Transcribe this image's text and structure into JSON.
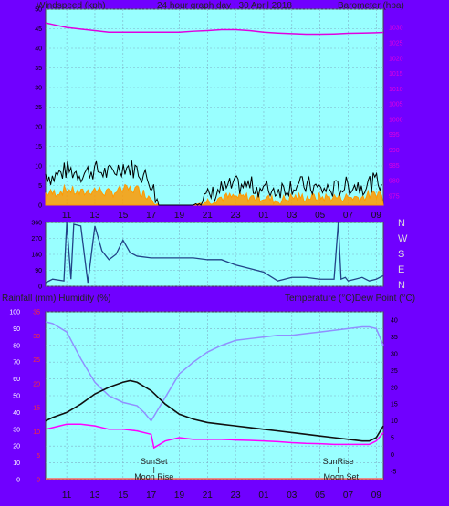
{
  "header": {
    "left_label": "Windspeed (kph)",
    "title": "24 hour graph day : 30 April 2018",
    "right_label": "Barometer (hpa)"
  },
  "direction_labels": [
    "N",
    "W",
    "S",
    "E",
    "N"
  ],
  "bottom_header": {
    "left_label": "Rainfall (mm)  Humidity (%)",
    "right_label": "Temperature (°C)Dew Point (°C)"
  },
  "annotations": [
    {
      "text": "SunSet",
      "hour": 17.2,
      "row": 1
    },
    {
      "text": "Moon Rise",
      "hour": 17.2,
      "row": 2
    },
    {
      "text": "SunRise",
      "hour": 30.3,
      "row": 1
    },
    {
      "text": "Moon Set",
      "hour": 30.5,
      "row": 2
    }
  ],
  "colors": {
    "background": "#7000ff",
    "plot": "#99ffff",
    "barometer": "#e000e0",
    "gust": "#000000",
    "wind_avg": "#ff9900",
    "direction": "#224488",
    "temperature": "#101010",
    "humidity": "#9090ff",
    "dewpoint": "#ff00ff",
    "rain": "#ff6666"
  },
  "chart_data": [
    {
      "type": "line",
      "name": "wind-barometer",
      "x_ticks": [
        "11",
        "13",
        "15",
        "17",
        "19",
        "21",
        "23",
        "01",
        "03",
        "05",
        "07",
        "09"
      ],
      "x_range_hours": [
        9.5,
        33.5
      ],
      "y_left_range": [
        0,
        50
      ],
      "y_left_ticks": [
        "0",
        "5",
        "10",
        "15",
        "20",
        "25",
        "30",
        "35",
        "40",
        "45",
        "50"
      ],
      "y_right_range": [
        972,
        1036
      ],
      "y_right_ticks": [
        "975",
        "980",
        "985",
        "990",
        "995",
        "1000",
        "1005",
        "1010",
        "1015",
        "1020",
        "1025",
        "1030"
      ],
      "series": [
        {
          "name": "",
          "axis": "right",
          "x": [
            9.5,
            10,
            11,
            12,
            13,
            14,
            15,
            16,
            17,
            18,
            19,
            20,
            21,
            22,
            23,
            24,
            25,
            26,
            27,
            28,
            29,
            30,
            31,
            32,
            33,
            33.5
          ],
          "values": [
            1031.5,
            1031,
            1030,
            1029.5,
            1029,
            1028.5,
            1028.5,
            1028.5,
            1028.5,
            1028.5,
            1028.5,
            1028.8,
            1029,
            1029.3,
            1029.3,
            1029,
            1028.5,
            1028.2,
            1028,
            1027.8,
            1027.8,
            1027.9,
            1028.1,
            1028.2,
            1028.3,
            1028.4
          ]
        },
        {
          "name": "",
          "axis": "left",
          "x": [
            9.5,
            10,
            11,
            12,
            13,
            14,
            15,
            16,
            17,
            17.5,
            18,
            19,
            20,
            21,
            22,
            23,
            24,
            25,
            26,
            27,
            28,
            29,
            30,
            31,
            32,
            33,
            33.5
          ],
          "values": [
            8,
            7,
            9,
            8,
            9,
            8,
            10,
            9,
            6,
            0,
            0,
            0,
            0,
            2,
            4,
            5,
            5,
            4,
            4,
            5,
            5,
            4,
            4,
            5,
            5,
            6,
            6
          ]
        },
        {
          "name": "",
          "axis": "left",
          "x": [
            9.5,
            10,
            11,
            12,
            13,
            14,
            15,
            16,
            17,
            17.5,
            18,
            19,
            20,
            21,
            22,
            23,
            24,
            25,
            26,
            27,
            28,
            29,
            30,
            31,
            32,
            33,
            33.5
          ],
          "values": [
            3,
            3,
            4,
            3,
            4,
            3,
            4,
            4,
            2,
            0,
            0,
            0,
            0,
            1,
            2,
            2,
            2,
            2,
            1,
            2,
            2,
            2,
            2,
            2,
            2,
            3,
            3
          ]
        }
      ]
    },
    {
      "type": "line",
      "name": "wind-direction",
      "x_range_hours": [
        9.5,
        33.5
      ],
      "y_range": [
        0,
        360
      ],
      "y_ticks": [
        "0",
        "90",
        "180",
        "270",
        "360"
      ],
      "series": [
        {
          "name": "",
          "x": [
            9.5,
            10,
            10.8,
            11,
            11.3,
            11.5,
            12,
            12.5,
            13,
            13.5,
            14,
            14.5,
            15,
            15.5,
            16,
            17,
            18,
            19,
            20,
            21,
            22,
            23,
            24,
            25,
            26,
            27,
            28,
            29,
            30,
            30.3,
            30.5,
            30.8,
            31,
            31.5,
            32,
            32.5,
            33,
            33.5
          ],
          "values": [
            20,
            40,
            30,
            360,
            40,
            350,
            340,
            20,
            340,
            200,
            150,
            180,
            260,
            190,
            170,
            160,
            160,
            160,
            160,
            150,
            150,
            120,
            100,
            80,
            30,
            50,
            50,
            40,
            40,
            360,
            40,
            50,
            30,
            40,
            50,
            30,
            40,
            60
          ]
        }
      ]
    },
    {
      "type": "line",
      "name": "temperature-humidity",
      "x_ticks": [
        "11",
        "13",
        "15",
        "17",
        "19",
        "21",
        "23",
        "01",
        "03",
        "05",
        "07",
        "09"
      ],
      "x_range_hours": [
        9.5,
        33.5
      ],
      "y_left_range": [
        0,
        100
      ],
      "y_left_ticks": [
        "0",
        "10",
        "20",
        "30",
        "40",
        "50",
        "60",
        "70",
        "80",
        "90",
        "100"
      ],
      "y_left2_ticks": [
        "0",
        "5",
        "10",
        "15",
        "20",
        "25",
        "30",
        "35"
      ],
      "y_right_range": [
        -7.5,
        42.5
      ],
      "y_right_ticks": [
        "-5",
        "0",
        "5",
        "10",
        "15",
        "20",
        "25",
        "30",
        "35",
        "40"
      ],
      "series": [
        {
          "name": "",
          "axis": "right",
          "x": [
            9.5,
            10,
            11,
            12,
            13,
            14,
            15,
            15.5,
            16,
            17,
            18,
            19,
            20,
            21,
            22,
            23,
            24,
            25,
            26,
            27,
            28,
            29,
            30,
            31,
            32,
            32.5,
            33,
            33.5
          ],
          "values": [
            10,
            11,
            12.5,
            15,
            18,
            20,
            21.5,
            22,
            21.5,
            19,
            15,
            12,
            10.5,
            9.5,
            9,
            8.5,
            8,
            7.5,
            7,
            6.5,
            6,
            5.5,
            5,
            4.5,
            4,
            4,
            5,
            8.5
          ]
        },
        {
          "name": "",
          "axis": "right",
          "x": [
            9.5,
            10,
            11,
            12,
            13,
            14,
            15,
            16,
            17,
            17.2,
            18,
            19,
            20,
            21,
            22,
            23,
            24,
            25,
            26,
            27,
            28,
            29,
            30,
            31,
            32,
            32.5,
            33,
            33.5
          ],
          "values": [
            7.5,
            8,
            9,
            9,
            8.5,
            7.5,
            7.5,
            7,
            6,
            2,
            4,
            5,
            4.5,
            4.5,
            4.5,
            4.3,
            4.2,
            4,
            3.8,
            3.5,
            3.3,
            3.2,
            3,
            3,
            3,
            3,
            4,
            6.5
          ]
        },
        {
          "name": "",
          "axis": "left",
          "x": [
            9.5,
            10,
            11,
            12,
            13,
            14,
            15,
            16,
            16.5,
            17,
            18,
            19,
            20,
            21,
            22,
            23,
            24,
            25,
            26,
            27,
            28,
            29,
            30,
            31,
            32,
            32.5,
            33,
            33.5
          ],
          "values": [
            94,
            93,
            88,
            72,
            58,
            50,
            46,
            44,
            40,
            35,
            49,
            63,
            70,
            76,
            80,
            83,
            84,
            85,
            86,
            86,
            87,
            88,
            89,
            90,
            91,
            91,
            90,
            80
          ]
        },
        {
          "name": "",
          "axis": "left",
          "x": [
            9.5,
            33.5
          ],
          "values": [
            0,
            0
          ]
        }
      ]
    }
  ]
}
